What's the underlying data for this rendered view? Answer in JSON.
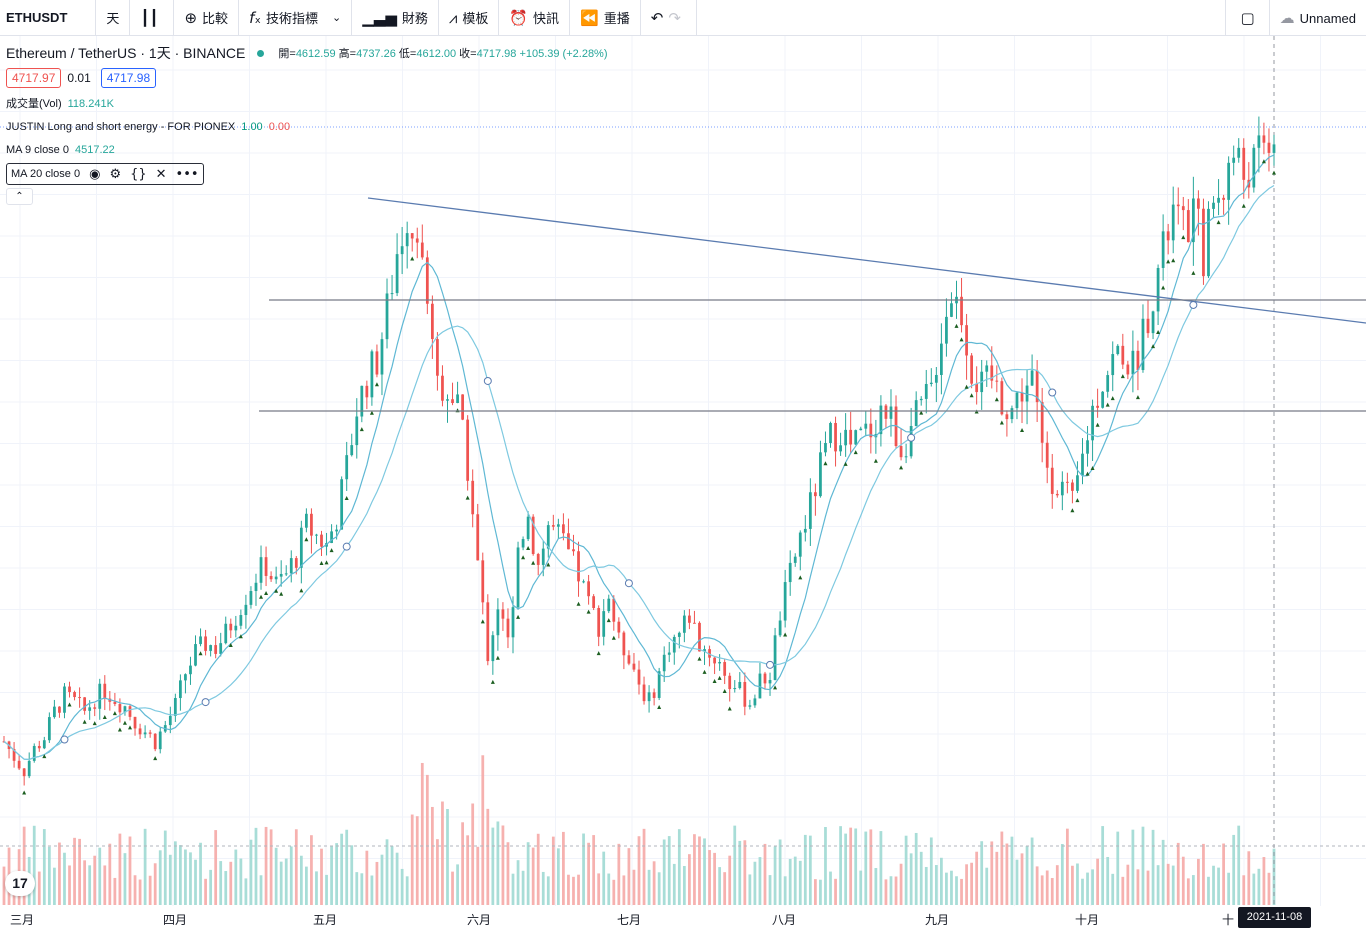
{
  "toolbar": {
    "symbol": "ETHUSDT",
    "interval": "天",
    "compare": "比較",
    "indicators": "技術指標",
    "financials": "財務",
    "templates": "模板",
    "alert": "快訊",
    "replay": "重播",
    "layout_name": "Unnamed"
  },
  "legend": {
    "title": "Ethereum / TetherUS · 1天 · BINANCE",
    "open_label": "開=",
    "open": "4612.59",
    "high_label": "高=",
    "high": "4737.26",
    "low_label": "低=",
    "low": "4612.00",
    "close_label": "收=",
    "close": "4717.98",
    "change": "+105.39 (+2.28%)",
    "bid": "4717.97",
    "spread": "0.01",
    "ask": "4717.98",
    "vol_label": "成交量(Vol)",
    "vol_value": "118.241K",
    "justin_label": "JUSTIN Long and short energy - FOR PIONEX",
    "justin_v1": "1.00",
    "justin_v2": "0.00",
    "ma9_label": "MA 9 close 0",
    "ma9_value": "4517.22",
    "ma20_label": "MA 20 close 0"
  },
  "x_axis": {
    "labels": [
      "三月",
      "四月",
      "五月",
      "六月",
      "七月",
      "八月",
      "九月",
      "十月",
      "十"
    ],
    "crosshair_date": "2021-11-08"
  },
  "colors": {
    "up": "#26a69a",
    "down": "#ef5350",
    "ma9": "#5fb8d4",
    "ma20": "#7ec9e0",
    "trendline": "#5a7bb0",
    "hline": "#787b86"
  },
  "chart_data": {
    "type": "candlestick",
    "symbol": "ETHUSDT",
    "interval": "1D",
    "price_extent_approx": [
      1300,
      4740
    ],
    "last": {
      "date": "2021-11-08",
      "open": 4612.59,
      "high": 4737.26,
      "low": 4612.0,
      "close": 4717.98
    },
    "closes_approx": [
      1600,
      1520,
      1450,
      1560,
      1620,
      1750,
      1830,
      1800,
      1750,
      1820,
      1860,
      1820,
      1780,
      1700,
      1650,
      1600,
      1680,
      1780,
      1950,
      2050,
      2100,
      2080,
      2150,
      2250,
      2350,
      2450,
      2500,
      2400,
      2450,
      2550,
      2700,
      2650,
      2600,
      2750,
      3000,
      3300,
      3450,
      3550,
      3800,
      4100,
      4300,
      4150,
      3900,
      3450,
      3400,
      3300,
      3000,
      2500,
      2050,
      2300,
      2100,
      2600,
      2750,
      2500,
      2700,
      2650,
      2550,
      2450,
      2300,
      2200,
      2350,
      2100,
      2050,
      1900,
      1800,
      1950,
      2100,
      2150,
      2250,
      2100,
      2050,
      2000,
      1900,
      1850,
      1800,
      1900,
      1950,
      2250,
      2450,
      2650,
      2800,
      3000,
      3150,
      3200,
      3100,
      3150,
      3200,
      3300,
      3250,
      3100,
      3200,
      3300,
      3400,
      3700,
      3900,
      3800,
      3500,
      3400,
      3450,
      3350,
      3300,
      3400,
      3450,
      3100,
      2950,
      2900,
      2800,
      3050,
      3300,
      3450,
      3550,
      3600,
      3500,
      3700,
      3900,
      4100,
      4300,
      4200,
      4300,
      4100,
      4350,
      4450,
      4600,
      4500,
      4550,
      4620,
      4720
    ]
  }
}
